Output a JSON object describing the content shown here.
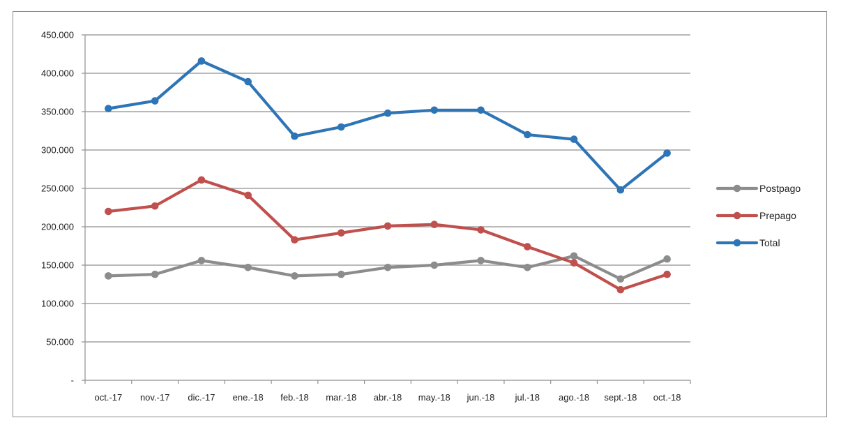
{
  "chart_data": {
    "type": "line",
    "title": "",
    "xlabel": "",
    "ylabel": "",
    "categories": [
      "oct.-17",
      "nov.-17",
      "dic.-17",
      "ene.-18",
      "feb.-18",
      "mar.-18",
      "abr.-18",
      "may.-18",
      "jun.-18",
      "jul.-18",
      "ago.-18",
      "sept.-18",
      "oct.-18"
    ],
    "y_ticks": [
      "-",
      "50.000",
      "100.000",
      "150.000",
      "200.000",
      "250.000",
      "300.000",
      "350.000",
      "400.000",
      "450.000"
    ],
    "ylim": [
      0,
      450000
    ],
    "grid": true,
    "legend_position": "right",
    "series": [
      {
        "name": "Postpago",
        "color": "#8c8c8c",
        "values": [
          136000,
          138000,
          156000,
          147000,
          136000,
          138000,
          147000,
          150000,
          156000,
          147000,
          162000,
          132000,
          158000
        ]
      },
      {
        "name": "Prepago",
        "color": "#c0504d",
        "values": [
          220000,
          227000,
          261000,
          241000,
          183000,
          192000,
          201000,
          203000,
          196000,
          174000,
          153000,
          118000,
          138000
        ]
      },
      {
        "name": "Total",
        "color": "#2e75b6",
        "values": [
          354000,
          364000,
          416000,
          389000,
          318000,
          330000,
          348000,
          352000,
          352000,
          320000,
          314000,
          248000,
          296000
        ]
      }
    ]
  }
}
